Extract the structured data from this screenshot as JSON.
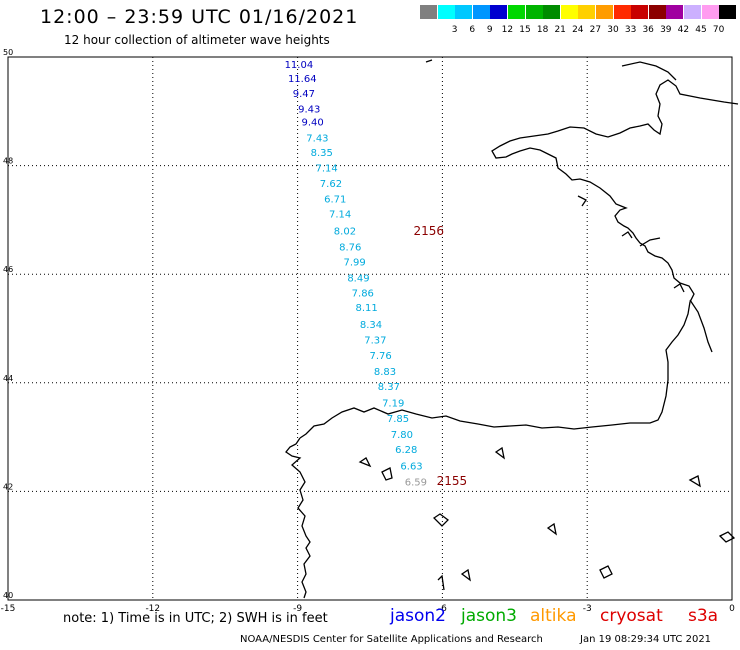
{
  "header": {
    "title": "12:00 – 23:59 UTC 01/16/2021",
    "subtitle": "12 hour collection of altimeter wave heights"
  },
  "color_scale": {
    "unit": "(ft)",
    "bins": [
      {
        "label": "",
        "color": "#808080"
      },
      {
        "label": "3",
        "color": "#00ffff"
      },
      {
        "label": "6",
        "color": "#00c8ff"
      },
      {
        "label": "9",
        "color": "#0096ff"
      },
      {
        "label": "12",
        "color": "#0000d0"
      },
      {
        "label": "15",
        "color": "#00d800"
      },
      {
        "label": "18",
        "color": "#00b400"
      },
      {
        "label": "21",
        "color": "#008c00"
      },
      {
        "label": "24",
        "color": "#ffff00"
      },
      {
        "label": "27",
        "color": "#ffd000"
      },
      {
        "label": "30",
        "color": "#ff9c00"
      },
      {
        "label": "33",
        "color": "#ff2a00"
      },
      {
        "label": "36",
        "color": "#c80000"
      },
      {
        "label": "39",
        "color": "#8c0000"
      },
      {
        "label": "42",
        "color": "#a000a0"
      },
      {
        "label": "45",
        "color": "#ccb0ff"
      },
      {
        "label": "70",
        "color": "#ff9cf0"
      },
      {
        "label": "",
        "color": "#000000"
      }
    ]
  },
  "map": {
    "x_ticks": [
      "-15",
      "-12",
      "-9",
      "-6",
      "-3",
      "0"
    ],
    "y_ticks": [
      "50",
      "48",
      "46",
      "44",
      "42",
      "40"
    ],
    "wave_readings": [
      {
        "value": "11.04",
        "color": "#0000c0",
        "lon": -9.27,
        "lat": 49.8
      },
      {
        "value": "11.64",
        "color": "#0000c0",
        "lon": -9.2,
        "lat": 49.54
      },
      {
        "value": "9.47",
        "color": "#0000c0",
        "lon": -9.1,
        "lat": 49.26
      },
      {
        "value": "9.43",
        "color": "#0000c0",
        "lon": -8.99,
        "lat": 48.98
      },
      {
        "value": "9.40",
        "color": "#0000c0",
        "lon": -8.92,
        "lat": 48.74
      },
      {
        "value": "7.43",
        "color": "#00aadd",
        "lon": -8.82,
        "lat": 48.44
      },
      {
        "value": "8.35",
        "color": "#00aadd",
        "lon": -8.73,
        "lat": 48.18
      },
      {
        "value": "7.14",
        "color": "#00aadd",
        "lon": -8.63,
        "lat": 47.89
      },
      {
        "value": "7.62",
        "color": "#00aadd",
        "lon": -8.54,
        "lat": 47.61
      },
      {
        "value": "6.71",
        "color": "#00aadd",
        "lon": -8.45,
        "lat": 47.32
      },
      {
        "value": "7.14",
        "color": "#00aadd",
        "lon": -8.35,
        "lat": 47.04
      },
      {
        "value": "8.02",
        "color": "#00aadd",
        "lon": -8.25,
        "lat": 46.73
      },
      {
        "value": "8.76",
        "color": "#00aadd",
        "lon": -8.14,
        "lat": 46.44
      },
      {
        "value": "7.99",
        "color": "#00aadd",
        "lon": -8.05,
        "lat": 46.16
      },
      {
        "value": "8.49",
        "color": "#00aadd",
        "lon": -7.97,
        "lat": 45.87
      },
      {
        "value": "7.86",
        "color": "#00aadd",
        "lon": -7.88,
        "lat": 45.59
      },
      {
        "value": "8.11",
        "color": "#00aadd",
        "lon": -7.8,
        "lat": 45.32
      },
      {
        "value": "8.34",
        "color": "#00aadd",
        "lon": -7.71,
        "lat": 45.01
      },
      {
        "value": "7.37",
        "color": "#00aadd",
        "lon": -7.62,
        "lat": 44.72
      },
      {
        "value": "7.76",
        "color": "#00aadd",
        "lon": -7.51,
        "lat": 44.44
      },
      {
        "value": "8.83",
        "color": "#00aadd",
        "lon": -7.42,
        "lat": 44.14
      },
      {
        "value": "8.37",
        "color": "#00aadd",
        "lon": -7.34,
        "lat": 43.87
      },
      {
        "value": "7.19",
        "color": "#00aadd",
        "lon": -7.25,
        "lat": 43.56
      },
      {
        "value": "7.85",
        "color": "#00aadd",
        "lon": -7.15,
        "lat": 43.28
      },
      {
        "value": "7.80",
        "color": "#00aadd",
        "lon": -7.07,
        "lat": 42.98
      },
      {
        "value": "6.28",
        "color": "#00aadd",
        "lon": -6.98,
        "lat": 42.71
      },
      {
        "value": "6.63",
        "color": "#00aadd",
        "lon": -6.87,
        "lat": 42.4
      },
      {
        "value": "6.59",
        "color": "#999999",
        "lon": -6.78,
        "lat": 42.11
      }
    ],
    "pass_labels": [
      {
        "text": "2156",
        "color": "#8b0000",
        "lon": -6.6,
        "lat": 46.72
      },
      {
        "text": "2155",
        "color": "#8b0000",
        "lon": -6.12,
        "lat": 42.12
      }
    ]
  },
  "footer": {
    "note": "note:  1) Time is in UTC;  2) SWH is in feet",
    "satellites": [
      {
        "name": "jason2",
        "color": "#0000ee"
      },
      {
        "name": "jason3",
        "color": "#00aa00"
      },
      {
        "name": "altika",
        "color": "#ff9900"
      },
      {
        "name": "cryosat",
        "color": "#dd0000"
      },
      {
        "name": "s3a",
        "color": "#dd0000"
      }
    ],
    "credit": "NOAA/NESDIS Center for Satellite Applications and Research",
    "timestamp": "Jan 19 08:29:34 UTC 2021"
  }
}
